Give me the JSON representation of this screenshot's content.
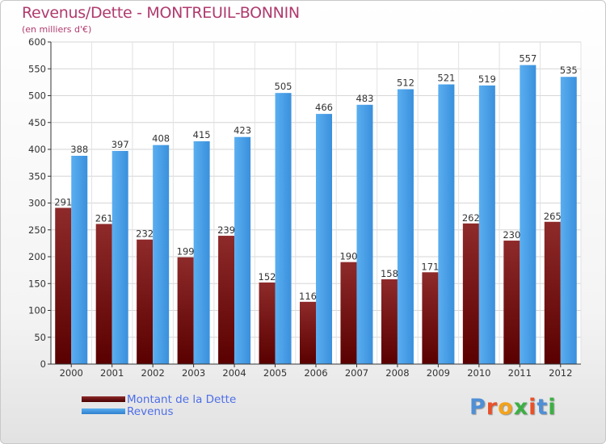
{
  "header": {
    "title": "Revenus/Dette - MONTREUIL-BONNIN",
    "subtitle": "(en milliers d'€)"
  },
  "legend": {
    "debt_label": "Montant de la Dette",
    "revenue_label": "Revenus"
  },
  "logo": {
    "text": "Proxiti",
    "letter_colors": [
      "#4f8fd6",
      "#e8512a",
      "#f3a21b",
      "#3cb043",
      "#e8512a",
      "#4f8fd6",
      "#3cb043"
    ]
  },
  "colors": {
    "debt": "#7a1414",
    "revenue": "#3f9be6",
    "title": "#b03a6e",
    "legend_text": "#4d6ee8"
  },
  "chart_data": {
    "type": "bar",
    "categories": [
      "2000",
      "2001",
      "2002",
      "2003",
      "2004",
      "2005",
      "2006",
      "2007",
      "2008",
      "2009",
      "2010",
      "2011",
      "2012"
    ],
    "series": [
      {
        "name": "Montant de la Dette",
        "values": [
          291,
          261,
          232,
          199,
          239,
          152,
          116,
          190,
          158,
          171,
          262,
          230,
          265
        ]
      },
      {
        "name": "Revenus",
        "values": [
          388,
          397,
          408,
          415,
          423,
          505,
          466,
          483,
          512,
          521,
          519,
          557,
          535
        ]
      }
    ],
    "yticks": [
      0,
      50,
      100,
      150,
      200,
      250,
      300,
      350,
      400,
      450,
      500,
      550,
      600
    ],
    "ylim": [
      0,
      600
    ],
    "grid": true,
    "legend_position": "bottom-left"
  }
}
